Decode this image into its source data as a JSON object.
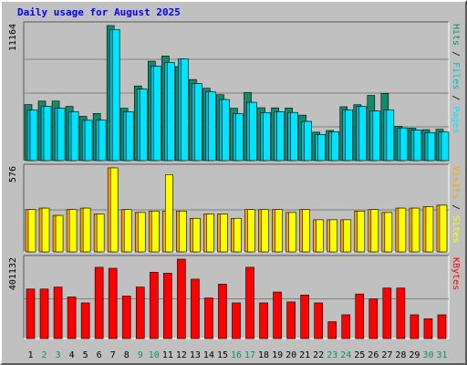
{
  "chart_data": {
    "type": "bar",
    "title": "Daily usage for August 2025",
    "categories": [
      "1",
      "2",
      "3",
      "4",
      "5",
      "6",
      "7",
      "8",
      "9",
      "10",
      "11",
      "12",
      "13",
      "14",
      "15",
      "16",
      "17",
      "18",
      "19",
      "20",
      "21",
      "22",
      "23",
      "24",
      "25",
      "26",
      "27",
      "28",
      "29",
      "30",
      "31"
    ],
    "weekend_days": [
      2,
      3,
      9,
      10,
      16,
      17,
      23,
      24,
      30,
      31
    ],
    "panels": [
      {
        "ymax_label": "11164",
        "ylim": [
          0,
          11164
        ],
        "right_labels": [
          "Pages",
          "Files",
          "Hits"
        ],
        "series": [
          {
            "name": "Hits",
            "color": "#138a6a",
            "values": [
              4630,
              4920,
              4920,
              4480,
              3660,
              3900,
              11164,
              4330,
              6170,
              8220,
              8650,
              7770,
              6700,
              5980,
              5450,
              4330,
              5630,
              4370,
              4360,
              4350,
              3760,
              2350,
              2490,
              4450,
              4620,
              5390,
              5560,
              2840,
              2680,
              2560,
              2590
            ]
          },
          {
            "name": "Files",
            "color": "#00bcd4",
            "values": [
              4170,
              4480,
              4330,
              4040,
              3330,
              3340,
              10840,
              4040,
              5920,
              7810,
              8120,
              8410,
              6370,
              5690,
              5050,
              3870,
              4820,
              3970,
              4040,
              3980,
              3240,
              2160,
              2390,
              4180,
              4470,
              4100,
              4170,
              2700,
              2520,
              2320,
              2360
            ]
          },
          {
            "name": "Pages",
            "color": "#00e5ff",
            "values": [
              4170,
              4480,
              4330,
              4040,
              3330,
              3340,
              10840,
              4040,
              5920,
              7810,
              8120,
              8410,
              6370,
              5690,
              5050,
              3870,
              4820,
              3970,
              4040,
              3980,
              3240,
              2160,
              2390,
              4180,
              4470,
              4100,
              4170,
              2700,
              2520,
              2320,
              2360
            ]
          }
        ]
      },
      {
        "ymax_label": "576",
        "ylim": [
          0,
          576
        ],
        "right_labels": [
          "Sites",
          "Visits"
        ],
        "series": [
          {
            "name": "Visits",
            "color": "#ffa500",
            "values": [
              290,
              300,
              250,
              290,
              300,
              260,
              576,
              290,
              270,
              280,
              280,
              280,
              230,
              260,
              260,
              230,
              290,
              290,
              290,
              270,
              290,
              220,
              220,
              220,
              280,
              290,
              270,
              300,
              300,
              310,
              320
            ]
          },
          {
            "name": "Sites",
            "color": "#ffff00",
            "values": [
              290,
              300,
              250,
              290,
              300,
              260,
              576,
              290,
              270,
              280,
              530,
              280,
              230,
              260,
              260,
              230,
              290,
              290,
              290,
              270,
              290,
              220,
              220,
              220,
              280,
              290,
              270,
              300,
              300,
              310,
              320
            ]
          }
        ]
      },
      {
        "ymax_label": "401132",
        "ylim": [
          0,
          401132
        ],
        "right_labels": [
          "KBytes"
        ],
        "series": [
          {
            "name": "KBytes",
            "color": "#ff0000",
            "values": [
              250000,
              250000,
              260000,
              210000,
              180000,
              360000,
              355000,
              215000,
              260000,
              335000,
              330000,
              401132,
              300000,
              205000,
              275000,
              180000,
              360000,
              180000,
              235000,
              185000,
              220000,
              180000,
              85000,
              120000,
              225000,
              200000,
              255000,
              255000,
              120000,
              100000,
              120000
            ]
          }
        ]
      }
    ],
    "colors": {
      "frame_bg": "#c0c0c0",
      "plot_bg": "#c0c0c0",
      "gridline": "#808080",
      "title": "#0000ff",
      "label_dark": "#000000",
      "weekend_label": "#138a6a",
      "outline": "#000000"
    }
  }
}
